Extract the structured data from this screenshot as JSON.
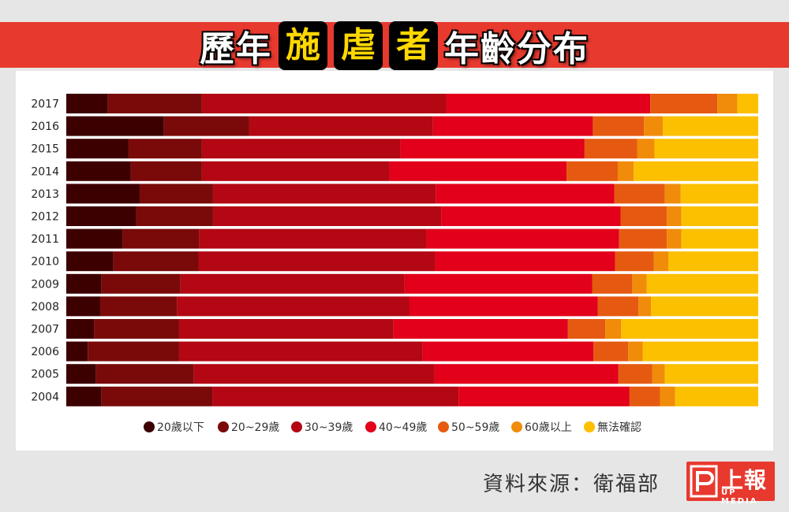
{
  "title": {
    "part1": "歷年",
    "h1": "施",
    "h2": "虐",
    "h3": "者",
    "part2": "年齡分布"
  },
  "footer": {
    "source": "資料來源：衛福部"
  },
  "logo": {
    "name": "上報",
    "sub": "UP MEDIA"
  },
  "chart_data": {
    "type": "bar",
    "orientation": "horizontal",
    "stacked": "percent",
    "categories": [
      "2017",
      "2016",
      "2015",
      "2014",
      "2013",
      "2012",
      "2011",
      "2010",
      "2009",
      "2008",
      "2007",
      "2006",
      "2005",
      "2004"
    ],
    "series": [
      {
        "name": "20歲以下",
        "color": "#3d0000",
        "values": [
          6.0,
          14.1,
          9.0,
          9.3,
          10.6,
          10.1,
          8.1,
          6.8,
          5.1,
          4.9,
          4.0,
          3.1,
          4.3,
          5.1
        ]
      },
      {
        "name": "20~29歲",
        "color": "#7a0a0a",
        "values": [
          13.6,
          12.3,
          10.6,
          10.3,
          10.6,
          11.1,
          11.1,
          12.3,
          11.4,
          11.1,
          12.3,
          13.2,
          14.1,
          16.0
        ]
      },
      {
        "name": "30~39歲",
        "color": "#b30713",
        "values": [
          35.3,
          26.6,
          28.7,
          27.1,
          32.2,
          33.0,
          32.9,
          34.2,
          32.4,
          33.6,
          31.0,
          35.2,
          34.8,
          35.6
        ]
      },
      {
        "name": "40~49歲",
        "color": "#e2001a",
        "values": [
          29.5,
          23.1,
          26.6,
          25.6,
          25.8,
          25.9,
          27.8,
          26.0,
          27.1,
          27.2,
          25.2,
          24.7,
          26.6,
          24.7
        ]
      },
      {
        "name": "50~59歲",
        "color": "#e55a10",
        "values": [
          9.7,
          7.4,
          7.6,
          7.4,
          7.3,
          6.7,
          6.9,
          5.6,
          5.8,
          5.9,
          5.4,
          5.0,
          4.9,
          4.4
        ]
      },
      {
        "name": "60歲以上",
        "color": "#f08c0a",
        "values": [
          2.9,
          2.7,
          2.5,
          2.3,
          2.3,
          2.1,
          2.1,
          2.1,
          2.1,
          1.8,
          2.3,
          2.1,
          1.8,
          2.2
        ]
      },
      {
        "name": "無法確認",
        "color": "#fcc000",
        "values": [
          3.0,
          13.8,
          15.0,
          18.0,
          11.2,
          11.1,
          11.1,
          13.0,
          16.1,
          15.5,
          19.8,
          16.7,
          13.5,
          12.0
        ]
      }
    ],
    "xlim": [
      0,
      100
    ],
    "legend": "bottom",
    "grid": false
  }
}
